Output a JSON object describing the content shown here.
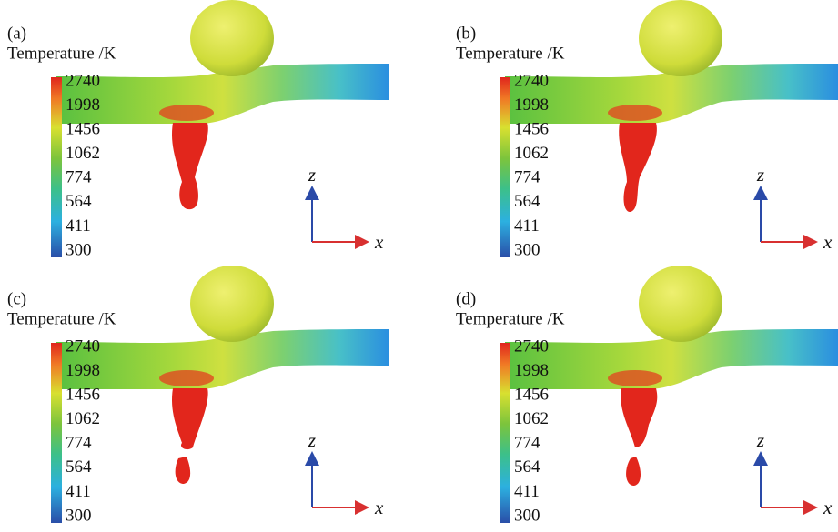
{
  "panels": [
    {
      "label": "(a)",
      "colorbar": {
        "title": "Temperature /K",
        "ticks": [
          2740,
          1998,
          1456,
          1062,
          774,
          564,
          411,
          300
        ]
      },
      "axes": {
        "vertical": "z",
        "horizontal": "x"
      }
    },
    {
      "label": "(b)",
      "colorbar": {
        "title": "Temperature /K",
        "ticks": [
          2740,
          1998,
          1456,
          1062,
          774,
          564,
          411,
          300
        ]
      },
      "axes": {
        "vertical": "z",
        "horizontal": "x"
      }
    },
    {
      "label": "(c)",
      "colorbar": {
        "title": "Temperature /K",
        "ticks": [
          2740,
          1998,
          1456,
          1062,
          774,
          564,
          411,
          300
        ]
      },
      "axes": {
        "vertical": "z",
        "horizontal": "x"
      }
    },
    {
      "label": "(d)",
      "colorbar": {
        "title": "Temperature /K",
        "ticks": [
          2740,
          1998,
          1456,
          1062,
          774,
          564,
          411,
          300
        ]
      },
      "axes": {
        "vertical": "z",
        "horizontal": "x"
      }
    }
  ]
}
